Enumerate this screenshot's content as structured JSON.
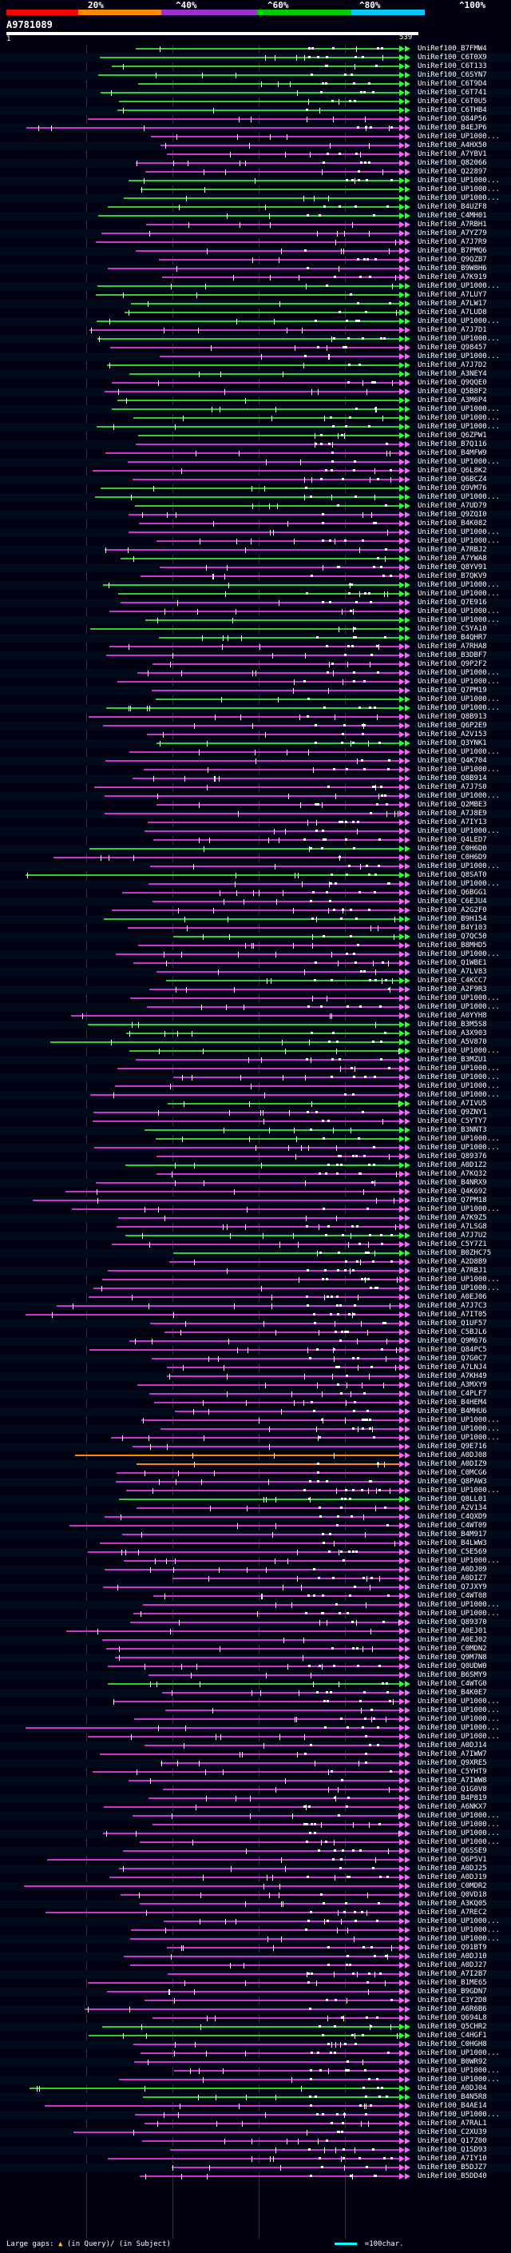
{
  "header": {
    "percent_labels": [
      "20%",
      "^40%",
      "^60%",
      "^80%",
      "^100%"
    ],
    "colors": {
      "red": "#ff0000",
      "orange": "#ff8800",
      "purple": "#9933cc",
      "green": "#00cc00",
      "cyan": "#00ccff"
    }
  },
  "query": {
    "id": "A9781089",
    "start": "1",
    "end": "539"
  },
  "hits": [
    "UniRef100_B7FMW4",
    "UniRef100_C6T0X9",
    "UniRef100_C6T133",
    "UniRef100_C6SYN7",
    "UniRef100_C6T9D4",
    "UniRef100_C6T741",
    "UniRef100_C6T0U5",
    "UniRef100_C6THB4",
    "UniRef100_Q84P56",
    "UniRef100_B4EJP6",
    "UniRef100_UP1000...",
    "UniRef100_A4HX50",
    "UniRef100_A7YBV1",
    "UniRef100_Q82066",
    "UniRef100_Q22897",
    "UniRef100_UP1000...",
    "UniRef100_UP1000...",
    "UniRef100_UP1000...",
    "UniRef100_B4UZF8",
    "UniRef100_C4MH01",
    "UniRef100_A7RBH1",
    "UniRef100_A7YZ79",
    "UniRef100_A7J7R9",
    "UniRef100_B7PMQ6",
    "UniRef100_Q9QZB7",
    "UniRef100_B9W8H6",
    "UniRef100_A7K919",
    "UniRef100_UP1000...",
    "UniRef100_A7LUY7",
    "UniRef100_A7LW17",
    "UniRef100_A7LUD8",
    "UniRef100_UP1000...",
    "UniRef100_A7J7D1",
    "UniRef100_UP1000...",
    "UniRef100_Q98457",
    "UniRef100_UP1000...",
    "UniRef100_A7J7D2",
    "UniRef100_A3NEY4",
    "UniRef100_Q9QQE0",
    "UniRef100_Q5B8F2",
    "UniRef100_A3M6P4",
    "UniRef100_UP1000...",
    "UniRef100_UP1000...",
    "UniRef100_UP1000...",
    "UniRef100_Q6ZPW1",
    "UniRef100_B7Q116",
    "UniRef100_B4MFW9",
    "UniRef100_UP1000...",
    "UniRef100_Q6L8K2",
    "UniRef100_Q6BCZ4",
    "UniRef100_Q9VM76",
    "UniRef100_UP1000...",
    "UniRef100_A7UD79",
    "UniRef100_Q9ZQI0",
    "UniRef100_B4K082",
    "UniRef100_UP1000...",
    "UniRef100_UP1000...",
    "UniRef100_A7RBJ2",
    "UniRef100_A7YWA8",
    "UniRef100_Q8YV91",
    "UniRef100_B7QKV9",
    "UniRef100_UP1000...",
    "UniRef100_UP1000...",
    "UniRef100_Q7E916",
    "UniRef100_UP1000...",
    "UniRef100_UP1000...",
    "UniRef100_C5YA10",
    "UniRef100_B4QHR7",
    "UniRef100_A7RHA8",
    "UniRef100_B3DBF7",
    "UniRef100_Q9P2F2",
    "UniRef100_UP1000...",
    "UniRef100_UP1000...",
    "UniRef100_Q7PM19",
    "UniRef100_UP1000...",
    "UniRef100_UP1000...",
    "UniRef100_Q8B913",
    "UniRef100_Q6P2E9",
    "UniRef100_A2V153",
    "UniRef100_Q3YNK1",
    "UniRef100_UP1000...",
    "UniRef100_Q4K704",
    "UniRef100_UP1000...",
    "UniRef100_Q8B914",
    "UniRef100_A7J7S0",
    "UniRef100_UP1000...",
    "UniRef100_Q2MBE3",
    "UniRef100_A7J8E9",
    "UniRef100_A7IY13",
    "UniRef100_UP1000...",
    "UniRef100_Q4LED7",
    "UniRef100_C0H6D0",
    "UniRef100_C0H6D9",
    "UniRef100_UP1000...",
    "UniRef100_Q8SAT0",
    "UniRef100_UP1000...",
    "UniRef100_Q6BGG1",
    "UniRef100_C6EJU4",
    "UniRef100_A2G2F0",
    "UniRef100_B9H154",
    "UniRef100_B4Y103",
    "UniRef100_Q7QC50",
    "UniRef100_B8MHD5",
    "UniRef100_UP1000...",
    "UniRef100_Q1WBE1",
    "UniRef100_A7LV83",
    "UniRef100_C4KCC7",
    "UniRef100_A2F9R3",
    "UniRef100_UP1000...",
    "UniRef100_UP1000...",
    "UniRef100_A0YYH8",
    "UniRef100_B3M5S8",
    "UniRef100_A3X903",
    "UniRef100_A5V870",
    "UniRef100_UP1000...",
    "UniRef100_B3MZU1",
    "UniRef100_UP1000...",
    "UniRef100_UP1000...",
    "UniRef100_UP1000...",
    "UniRef100_UP1000...",
    "UniRef100_A7IVU5",
    "UniRef100_Q9ZNY1",
    "UniRef100_C5YTY7",
    "UniRef100_B3NNT3",
    "UniRef100_UP1000...",
    "UniRef100_UP1000...",
    "UniRef100_Q89376",
    "UniRef100_A0D1Z2",
    "UniRef100_A7KQ32",
    "UniRef100_B4NRX9",
    "UniRef100_Q4K692",
    "UniRef100_Q7PM18",
    "UniRef100_UP1000...",
    "UniRef100_A7K9Z5",
    "UniRef100_A7LSG8",
    "UniRef100_A7J7U2",
    "UniRef100_C5Y7Z1",
    "UniRef100_B0ZHC75",
    "UniRef100_A2D8B9",
    "UniRef100_A7RBJ1",
    "UniRef100_UP1000...",
    "UniRef100_UP1000...",
    "UniRef100_A0EJ06",
    "UniRef100_A7J7C3",
    "UniRef100_A7IT05",
    "UniRef100_Q1UF57",
    "UniRef100_C5BJL6",
    "UniRef100_Q9M676",
    "UniRef100_Q84PC5",
    "UniRef100_Q7G0C7",
    "UniRef100_A7LNJ4",
    "UniRef100_A7KH49",
    "UniRef100_A3MXY9",
    "UniRef100_C4PLF7",
    "UniRef100_B4HEM4",
    "UniRef100_B4MHU6",
    "UniRef100_UP1000...",
    "UniRef100_UP1000...",
    "UniRef100_UP1000...",
    "UniRef100_Q9E716",
    "UniRef100_A0DJ08",
    "UniRef100_A0DIZ9",
    "UniRef100_C0MCG6",
    "UniRef100_Q8PAW3",
    "UniRef100_UP1000...",
    "UniRef100_Q8LL01",
    "UniRef100_A2V134",
    "UniRef100_C4QXD9",
    "UniRef100_C4WT09",
    "UniRef100_B4M917",
    "UniRef100_B4LWW3",
    "UniRef100_C5E569",
    "UniRef100_UP1000...",
    "UniRef100_A0DJ09",
    "UniRef100_A0DIZ7",
    "UniRef100_Q7JXY9",
    "UniRef100_C4WT08",
    "UniRef100_UP1000...",
    "UniRef100_UP1000...",
    "UniRef100_Q89370",
    "UniRef100_A0EJ01",
    "UniRef100_A0EJ02",
    "UniRef100_C0MDN2",
    "UniRef100_Q9M7N8",
    "UniRef100_Q0UDW0",
    "UniRef100_B6SMY9",
    "UniRef100_C4WTG0",
    "UniRef100_B4K0E7",
    "UniRef100_UP1000...",
    "UniRef100_UP1000...",
    "UniRef100_UP1000...",
    "UniRef100_UP1000...",
    "UniRef100_UP1000...",
    "UniRef100_A0DJ14",
    "UniRef100_A7IWW7",
    "UniRef100_Q9XRE5",
    "UniRef100_C5YHT9",
    "UniRef100_A7IWW8",
    "UniRef100_Q1G0V8",
    "UniRef100_B4P819",
    "UniRef100_A6NKX7",
    "UniRef100_UP1000...",
    "UniRef100_UP1000...",
    "UniRef100_UP1000...",
    "UniRef100_UP1000...",
    "UniRef100_Q6SSE9",
    "UniRef100_Q6P5V1",
    "UniRef100_A0DJ25",
    "UniRef100_A0DJ19",
    "UniRef100_C0MDR2",
    "UniRef100_Q0VD18",
    "UniRef100_A3KQ05",
    "UniRef100_A7REC2",
    "UniRef100_UP1000...",
    "UniRef100_UP1000...",
    "UniRef100_UP1000...",
    "UniRef100_Q91BT9",
    "UniRef100_A0DJ10",
    "UniRef100_A0DJ27",
    "UniRef100_A7I2B7",
    "UniRef100_B1ME65",
    "UniRef100_B9GDN7",
    "UniRef100_C3Y2D8",
    "UniRef100_A6R6B6",
    "UniRef100_Q694L8",
    "UniRef100_Q5CHR2",
    "UniRef100_C4HGF1",
    "UniRef100_C0HGH8",
    "UniRef100_UP1000...",
    "UniRef100_B0WR92",
    "UniRef100_UP1000...",
    "UniRef100_UP1000...",
    "UniRef100_A0DJ04",
    "UniRef100_B4N5R8",
    "UniRef100_B4AE14",
    "UniRef100_UP1000...",
    "UniRef100_A7RAL1",
    "UniRef100_C2XU39",
    "UniRef100_Q17Z00",
    "UniRef100_Q1SD93",
    "UniRef100_A7IY10",
    "UniRef100_B5DJZ7",
    "UniRef100_B5DD40"
  ],
  "footer": {
    "large_gaps_label": "Large gaps:",
    "in_query_label": "(in Query)/",
    "in_subject_label": "(in Subject)",
    "scale_label": "=100char."
  }
}
